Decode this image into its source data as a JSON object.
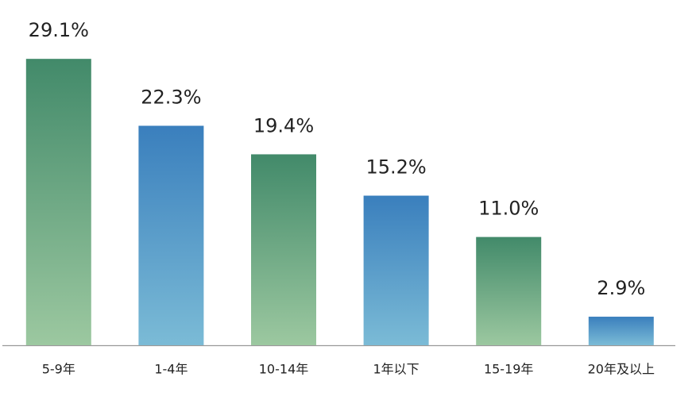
{
  "chart_data": {
    "type": "bar",
    "categories": [
      "5-9年",
      "1-4年",
      "10-14年",
      "1年以下",
      "15-19年",
      "20年及以上"
    ],
    "values": [
      29.1,
      22.3,
      19.4,
      15.2,
      11.0,
      2.9
    ],
    "value_labels": [
      "29.1%",
      "22.3%",
      "19.4%",
      "15.2%",
      "11.0%",
      "2.9%"
    ],
    "colors": [
      "#428a6a",
      "#3a7fbd",
      "#428a6a",
      "#3a7fbd",
      "#428a6a",
      "#3a7fbd"
    ],
    "gradient_end_colors": [
      "#9cc8a0",
      "#7bbbd6",
      "#9cc8a0",
      "#7bbbd6",
      "#9cc8a0",
      "#7bbbd6"
    ],
    "ylim": [
      0,
      35
    ]
  }
}
